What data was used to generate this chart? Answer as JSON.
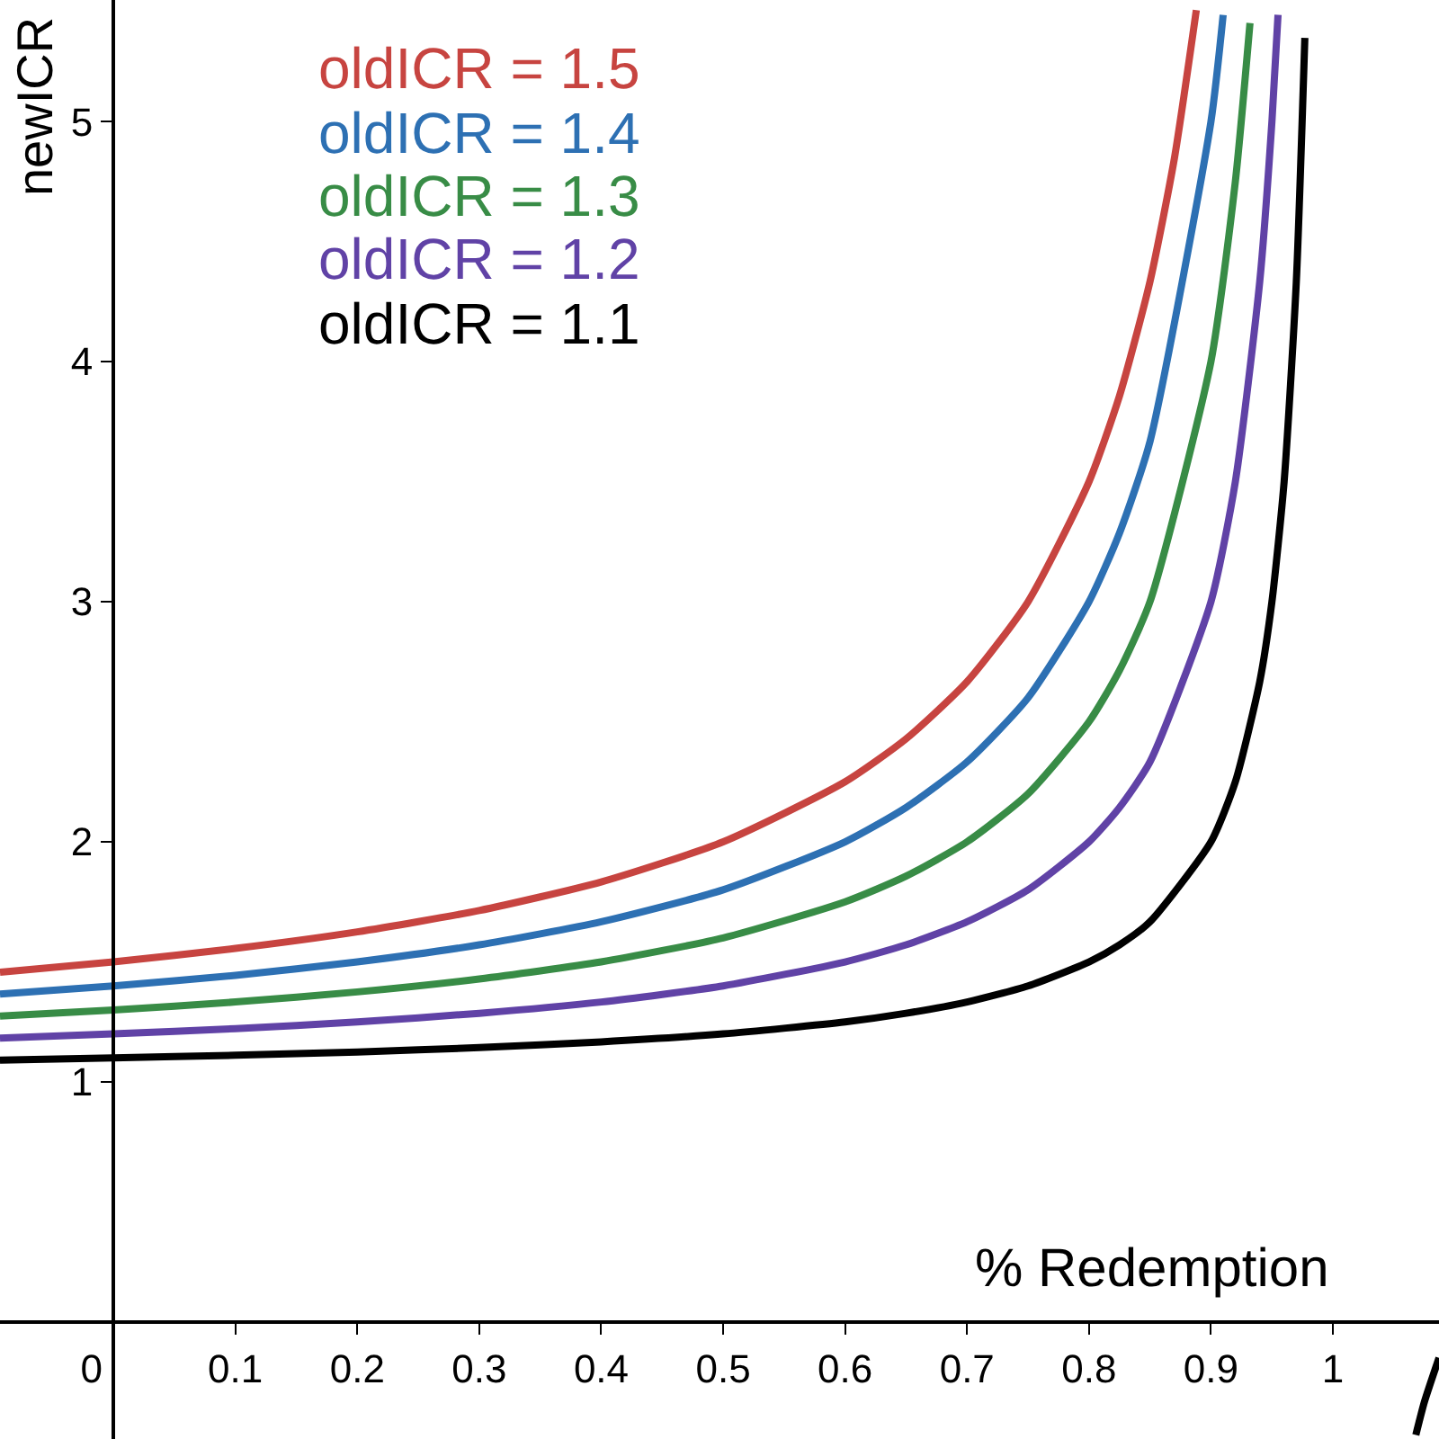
{
  "chart_data": {
    "type": "line",
    "xlabel": "% Redemption",
    "ylabel": "newICR",
    "xlim": [
      -0.093,
      1.087
    ],
    "ylim": [
      -0.487,
      5.506
    ],
    "xticks": [
      0,
      0.1,
      0.2,
      0.3,
      0.4,
      0.5,
      0.6,
      0.7,
      0.8,
      0.9,
      1
    ],
    "yticks": [
      1,
      2,
      3,
      4,
      5
    ],
    "marker": "none",
    "line_style": "solid",
    "series": [
      {
        "name": "oldICR = 1.5",
        "color": "#c74440",
        "x": [
          -0.093,
          0,
          0.1,
          0.2,
          0.3,
          0.4,
          0.5,
          0.6,
          0.65,
          0.7,
          0.75,
          0.8,
          0.825,
          0.85,
          0.87,
          0.888
        ],
        "values": [
          1.457,
          1.5,
          1.556,
          1.625,
          1.714,
          1.833,
          2,
          2.25,
          2.429,
          2.667,
          3,
          3.5,
          3.857,
          4.333,
          4.846,
          5.464
        ]
      },
      {
        "name": "oldICR = 1.4",
        "color": "#2d70b3",
        "x": [
          -0.093,
          0,
          0.1,
          0.2,
          0.3,
          0.4,
          0.5,
          0.6,
          0.65,
          0.7,
          0.75,
          0.8,
          0.825,
          0.85,
          0.9,
          0.91
        ],
        "values": [
          1.366,
          1.4,
          1.444,
          1.5,
          1.571,
          1.667,
          1.8,
          2,
          2.143,
          2.333,
          2.6,
          3,
          3.286,
          3.667,
          5,
          5.444
        ]
      },
      {
        "name": "oldICR = 1.3",
        "color": "#388c46",
        "x": [
          -0.093,
          0,
          0.1,
          0.2,
          0.3,
          0.4,
          0.5,
          0.6,
          0.65,
          0.7,
          0.75,
          0.8,
          0.825,
          0.85,
          0.9,
          0.92,
          0.932
        ],
        "values": [
          1.274,
          1.3,
          1.333,
          1.375,
          1.429,
          1.5,
          1.6,
          1.75,
          1.857,
          2,
          2.2,
          2.5,
          2.714,
          3,
          4,
          4.75,
          5.41
        ]
      },
      {
        "name": "oldICR = 1.2",
        "color": "#6042a6",
        "x": [
          -0.093,
          0,
          0.1,
          0.2,
          0.3,
          0.4,
          0.5,
          0.6,
          0.65,
          0.7,
          0.75,
          0.8,
          0.825,
          0.85,
          0.9,
          0.92,
          0.94,
          0.95,
          0.955
        ],
        "values": [
          1.183,
          1.2,
          1.222,
          1.25,
          1.286,
          1.333,
          1.4,
          1.5,
          1.571,
          1.667,
          1.8,
          2,
          2.143,
          2.333,
          3,
          3.5,
          4.333,
          5,
          5.444
        ]
      },
      {
        "name": "oldICR = 1.1",
        "color": "#000000",
        "x": [
          -0.093,
          0,
          0.1,
          0.2,
          0.3,
          0.4,
          0.5,
          0.6,
          0.65,
          0.7,
          0.75,
          0.8,
          0.825,
          0.85,
          0.9,
          0.92,
          0.94,
          0.95,
          0.96,
          0.97,
          0.977,
          1,
          1.068,
          1.075,
          1.087
        ],
        "values": [
          1.091,
          1.1,
          1.111,
          1.125,
          1.143,
          1.167,
          1.2,
          1.25,
          1.286,
          1.333,
          1.4,
          1.5,
          1.571,
          1.667,
          2,
          2.25,
          2.667,
          3,
          3.5,
          4.333,
          5.348,
          null,
          -0.47,
          -0.333,
          -0.149
        ]
      }
    ]
  }
}
